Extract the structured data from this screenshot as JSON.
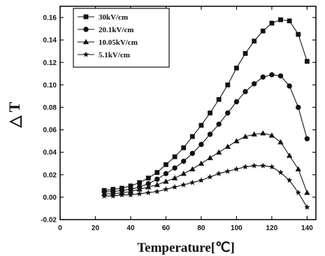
{
  "chart_data": {
    "type": "line",
    "xlabel": "Temperature[℃]",
    "ylabel": "△ T",
    "xlim": [
      0,
      145
    ],
    "ylim": [
      -0.02,
      0.17
    ],
    "xticks": [
      0,
      20,
      40,
      60,
      80,
      100,
      120,
      140
    ],
    "yticks": [
      -0.02,
      0.0,
      0.02,
      0.04,
      0.06,
      0.08,
      0.1,
      0.12,
      0.14,
      0.16
    ],
    "ytick_labels": [
      "-0.02",
      "0.00",
      "0.02",
      "0.04",
      "0.06",
      "0.08",
      "0.10",
      "0.12",
      "0.14",
      "0.16"
    ],
    "legend_position": "top-left",
    "grid": false,
    "x": [
      25,
      30,
      35,
      40,
      45,
      50,
      55,
      60,
      65,
      70,
      75,
      80,
      85,
      90,
      95,
      100,
      105,
      110,
      115,
      120,
      125,
      130,
      135,
      140
    ],
    "series": [
      {
        "name": "30kV/cm",
        "marker": "square",
        "values": [
          0.006,
          0.007,
          0.008,
          0.01,
          0.013,
          0.017,
          0.022,
          0.029,
          0.036,
          0.044,
          0.054,
          0.064,
          0.075,
          0.087,
          0.1,
          0.115,
          0.128,
          0.139,
          0.148,
          0.155,
          0.158,
          0.157,
          0.145,
          0.121
        ]
      },
      {
        "name": "20.1kV/cm",
        "marker": "circle",
        "values": [
          0.005,
          0.005,
          0.006,
          0.007,
          0.009,
          0.012,
          0.016,
          0.021,
          0.026,
          0.032,
          0.039,
          0.047,
          0.056,
          0.065,
          0.075,
          0.085,
          0.094,
          0.101,
          0.107,
          0.109,
          0.108,
          0.099,
          0.08,
          0.052
        ]
      },
      {
        "name": "10.05kV/cm",
        "marker": "triangle",
        "values": [
          0.003,
          0.003,
          0.004,
          0.005,
          0.007,
          0.009,
          0.011,
          0.014,
          0.017,
          0.021,
          0.025,
          0.03,
          0.035,
          0.04,
          0.045,
          0.05,
          0.054,
          0.056,
          0.057,
          0.055,
          0.049,
          0.037,
          0.025,
          0.004
        ]
      },
      {
        "name": "5.1kV/cm",
        "marker": "star",
        "values": [
          0.001,
          0.001,
          0.002,
          0.002,
          0.003,
          0.004,
          0.005,
          0.007,
          0.009,
          0.011,
          0.013,
          0.015,
          0.018,
          0.021,
          0.023,
          0.025,
          0.027,
          0.028,
          0.028,
          0.027,
          0.022,
          0.015,
          0.004,
          -0.009
        ]
      }
    ]
  },
  "colors": {
    "ink": "#111111",
    "background": "#ffffff"
  }
}
